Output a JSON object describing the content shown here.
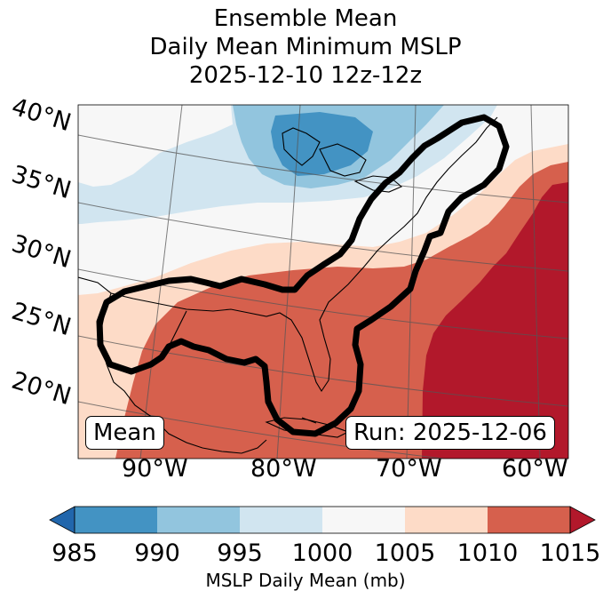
{
  "title": {
    "line1": "Ensemble Mean",
    "line2": "Daily Mean Minimum MSLP",
    "line3": "2025-12-10 12z-12z"
  },
  "map": {
    "lat_labels": [
      "40°N",
      "35°N",
      "30°N",
      "25°N",
      "20°N"
    ],
    "lon_labels": [
      "90°W",
      "80°W",
      "70°W",
      "60°W"
    ],
    "mean_label": "Mean",
    "run_label": "Run: 2025-12-06",
    "contour_color": "#000000"
  },
  "colorbar": {
    "label": "MSLP Daily Mean (mb)",
    "ticks": [
      "985",
      "990",
      "995",
      "1000",
      "1005",
      "1010",
      "1015"
    ],
    "colors": [
      "#2166ac",
      "#4393c3",
      "#92c5de",
      "#d1e5f0",
      "#f7f7f7",
      "#fddbc7",
      "#d6604d",
      "#b2182b"
    ],
    "extend": "both"
  }
}
